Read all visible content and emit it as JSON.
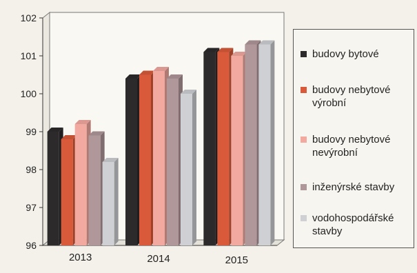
{
  "chart_data": {
    "type": "bar",
    "title": "",
    "xlabel": "",
    "ylabel": "",
    "categories": [
      "2013",
      "2014",
      "2015"
    ],
    "ylim": [
      96,
      102
    ],
    "yticks": [
      96,
      97,
      98,
      99,
      100,
      101,
      102
    ],
    "grid": false,
    "legend_position": "right",
    "series": [
      {
        "name": "budovy bytové",
        "color": "#2d2a2b",
        "values": [
          99.0,
          100.4,
          101.1
        ]
      },
      {
        "name": "budovy nebytové výrobní",
        "color": "#d95a3a",
        "values": [
          98.8,
          100.5,
          101.1
        ]
      },
      {
        "name": "budovy nebytové nevýrobní",
        "color": "#f2a9a0",
        "values": [
          99.2,
          100.6,
          101.0
        ]
      },
      {
        "name": "inženýrské stavby",
        "color": "#b0979a",
        "values": [
          98.9,
          100.4,
          101.3
        ]
      },
      {
        "name": "vodohospodářské stavby",
        "color": "#cfd0d3",
        "values": [
          98.2,
          100.0,
          101.3
        ]
      }
    ]
  }
}
